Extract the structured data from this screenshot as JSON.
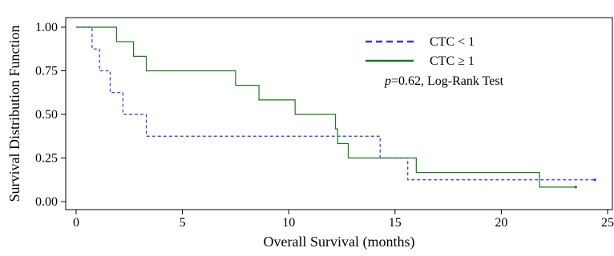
{
  "chart_data": {
    "type": "line",
    "xlabel": "Overall Survival (months)",
    "ylabel": "Survival Distribution Function",
    "xlim": [
      0,
      25
    ],
    "ylim": [
      0,
      1
    ],
    "x_ticks": [
      0,
      5,
      10,
      15,
      20,
      25
    ],
    "y_ticks": [
      0.0,
      0.25,
      0.5,
      0.75,
      1.0
    ],
    "x_tick_labels": [
      "0",
      "5",
      "10",
      "15",
      "20",
      "25"
    ],
    "y_tick_labels": [
      "0.00",
      "0.25",
      "0.50",
      "0.75",
      "1.00"
    ],
    "grid": false,
    "legend_position": "top-right",
    "annotation": {
      "italic_part": "p",
      "rest": "=0.62, Log-Rank Test"
    },
    "series": [
      {
        "name": "CTC < 1",
        "color": "#3333ee",
        "style": "dashed",
        "steps": [
          [
            0,
            1.0
          ],
          [
            0.75,
            0.875
          ],
          [
            1.1,
            0.75
          ],
          [
            1.6,
            0.625
          ],
          [
            2.2,
            0.5
          ],
          [
            3.3,
            0.375
          ],
          [
            14.3,
            0.25
          ],
          [
            15.6,
            0.125
          ],
          [
            24.4,
            0.125
          ]
        ]
      },
      {
        "name": "CTC ≥ 1",
        "color": "#1a7a1a",
        "style": "solid",
        "steps": [
          [
            0,
            1.0
          ],
          [
            1.9,
            0.917
          ],
          [
            2.7,
            0.833
          ],
          [
            3.3,
            0.75
          ],
          [
            7.5,
            0.667
          ],
          [
            8.6,
            0.583
          ],
          [
            10.3,
            0.5
          ],
          [
            12.2,
            0.417
          ],
          [
            12.3,
            0.333
          ],
          [
            12.8,
            0.25
          ],
          [
            16.0,
            0.167
          ],
          [
            21.8,
            0.083
          ],
          [
            23.5,
            0.083
          ]
        ]
      }
    ]
  }
}
